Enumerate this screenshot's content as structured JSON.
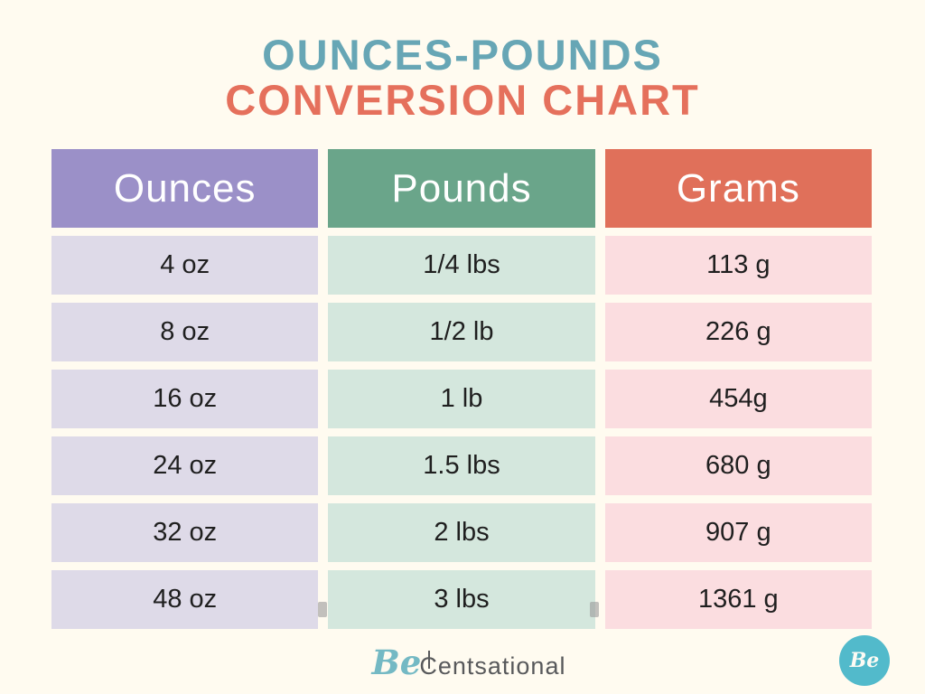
{
  "page": {
    "background_color": "#FFFBF0"
  },
  "title": {
    "line1": "OUNCES-POUNDS",
    "line2": "CONVERSION CHART",
    "line1_color": "#67A6B5",
    "line2_color": "#E5705C"
  },
  "table": {
    "columns": [
      {
        "label": "Ounces",
        "header_color": "#9B90C8",
        "cell_color": "#DEDAE8"
      },
      {
        "label": "Pounds",
        "header_color": "#6AA58A",
        "cell_color": "#D4E7DD"
      },
      {
        "label": "Grams",
        "header_color": "#E0705A",
        "cell_color": "#FBDDE0"
      }
    ],
    "rows": [
      [
        "4 oz",
        "1/4 lbs",
        "113 g"
      ],
      [
        "8 oz",
        "1/2 lb",
        "226 g"
      ],
      [
        "16 oz",
        "1 lb",
        "454g"
      ],
      [
        "24 oz",
        "1.5 lbs",
        "680 g"
      ],
      [
        "32 oz",
        "2 lbs",
        "907 g"
      ],
      [
        "48 oz",
        "3 lbs",
        "1361 g"
      ]
    ]
  },
  "chart_data": {
    "type": "table",
    "title": "OUNCES-POUNDS CONVERSION CHART",
    "columns": [
      "Ounces",
      "Pounds",
      "Grams"
    ],
    "rows": [
      [
        "4 oz",
        "1/4 lbs",
        "113 g"
      ],
      [
        "8 oz",
        "1/2 lb",
        "226 g"
      ],
      [
        "16 oz",
        "1 lb",
        "454g"
      ],
      [
        "24 oz",
        "1.5 lbs",
        "680 g"
      ],
      [
        "32 oz",
        "2 lbs",
        "907 g"
      ],
      [
        "48 oz",
        "3 lbs",
        "1361 g"
      ]
    ],
    "ounces_values": [
      4,
      8,
      16,
      24,
      32,
      48
    ],
    "pounds_values": [
      0.25,
      0.5,
      1,
      1.5,
      2,
      3
    ],
    "grams_values": [
      113,
      226,
      454,
      680,
      907,
      1361
    ]
  },
  "footer": {
    "brand_prefix": "Be",
    "brand_cent_letter": "C",
    "brand_rest": "entsational",
    "badge_text": "Be",
    "brand_teal": "#74B9C4",
    "badge_color": "#52BACB"
  }
}
